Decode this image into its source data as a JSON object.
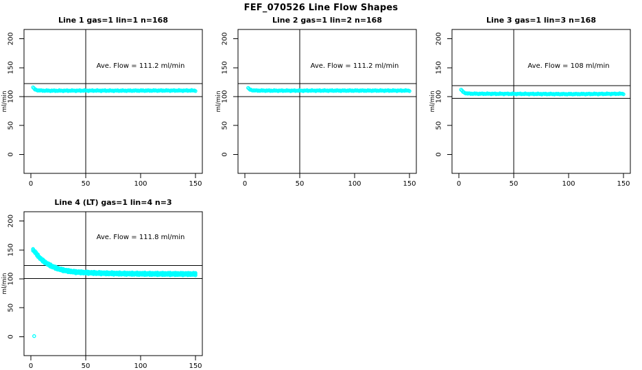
{
  "figure": {
    "title": "FEF_070526  Line Flow Shapes"
  },
  "axes": {
    "ylabel": "ml/min",
    "x_tick_labels": [
      "0",
      "50",
      "100",
      "150"
    ],
    "y_tick_labels": [
      "200",
      "150",
      "100",
      "50",
      "0"
    ]
  },
  "chart_data": [
    {
      "type": "scatter",
      "title": "Line 1 gas=1 lin=1 n=168",
      "n": 168,
      "ave_flow_ml_min": 111.2,
      "ave_label": "Ave. Flow =  111.2  ml/min",
      "marker": "open-circle",
      "marker_color": "#00FFFF",
      "xlim": [
        0,
        150
      ],
      "ylim": [
        0,
        200
      ],
      "x_ticks": [
        0,
        50,
        100,
        150
      ],
      "y_ticks": [
        0,
        50,
        100,
        150,
        200
      ],
      "ylabel": "ml/min",
      "vline_x": 50,
      "ref_lines_y": [
        122.3,
        100.1
      ],
      "runs": 1,
      "x_range": [
        2,
        150
      ],
      "series_shape": [
        [
          2,
          116
        ],
        [
          3,
          113.5
        ],
        [
          4,
          112
        ],
        [
          6,
          111
        ],
        [
          10,
          110.4
        ],
        [
          20,
          110.2
        ],
        [
          50,
          110.4
        ],
        [
          80,
          110.3
        ],
        [
          120,
          110.5
        ],
        [
          150,
          110.5
        ]
      ],
      "outliers": []
    },
    {
      "type": "scatter",
      "title": "Line 2 gas=1 lin=2 n=168",
      "n": 168,
      "ave_flow_ml_min": 111.2,
      "ave_label": "Ave. Flow =  111.2  ml/min",
      "marker": "open-circle",
      "marker_color": "#00FFFF",
      "xlim": [
        0,
        150
      ],
      "ylim": [
        0,
        200
      ],
      "x_ticks": [
        0,
        50,
        100,
        150
      ],
      "y_ticks": [
        0,
        50,
        100,
        150,
        200
      ],
      "ylabel": "ml/min",
      "vline_x": 50,
      "ref_lines_y": [
        122.3,
        100.1
      ],
      "runs": 1,
      "x_range": [
        3,
        150
      ],
      "series_shape": [
        [
          3,
          115
        ],
        [
          4,
          112.5
        ],
        [
          6,
          111.2
        ],
        [
          10,
          110.5
        ],
        [
          30,
          110.3
        ],
        [
          80,
          110.4
        ],
        [
          150,
          110.4
        ]
      ],
      "outliers": []
    },
    {
      "type": "scatter",
      "title": "Line 3 gas=1 lin=3 n=168",
      "n": 168,
      "ave_flow_ml_min": 108,
      "ave_label": "Ave. Flow =  108  ml/min",
      "marker": "open-circle",
      "marker_color": "#00FFFF",
      "xlim": [
        0,
        150
      ],
      "ylim": [
        0,
        200
      ],
      "x_ticks": [
        0,
        50,
        100,
        150
      ],
      "y_ticks": [
        0,
        50,
        100,
        150,
        200
      ],
      "ylabel": "ml/min",
      "vline_x": 50,
      "ref_lines_y": [
        118.8,
        97.2
      ],
      "runs": 1,
      "x_range": [
        2,
        150
      ],
      "series_shape": [
        [
          2,
          112
        ],
        [
          3,
          109.5
        ],
        [
          5,
          106.5
        ],
        [
          8,
          105.3
        ],
        [
          15,
          105
        ],
        [
          50,
          104.8
        ],
        [
          100,
          104.4
        ],
        [
          140,
          104.8
        ],
        [
          150,
          105
        ]
      ],
      "outliers": []
    },
    {
      "type": "scatter",
      "title": "Line 4 (LT) gas=1 lin=4 n=3",
      "n": 3,
      "ave_flow_ml_min": 111.8,
      "ave_label": "Ave. Flow =  111.8  ml/min",
      "marker": "open-circle",
      "marker_color": "#00FFFF",
      "xlim": [
        0,
        150
      ],
      "ylim": [
        0,
        200
      ],
      "x_ticks": [
        0,
        50,
        100,
        150
      ],
      "y_ticks": [
        0,
        50,
        100,
        150,
        200
      ],
      "ylabel": "ml/min",
      "vline_x": 50,
      "ref_lines_y": [
        123.0,
        100.6
      ],
      "runs": 3,
      "x_range": [
        2,
        150
      ],
      "series_shape": [
        [
          2,
          150
        ],
        [
          4,
          146
        ],
        [
          6,
          141
        ],
        [
          8,
          136.5
        ],
        [
          10,
          133
        ],
        [
          13,
          128.5
        ],
        [
          16,
          125
        ],
        [
          20,
          121
        ],
        [
          24,
          118
        ],
        [
          28,
          115.8
        ],
        [
          33,
          113.8
        ],
        [
          40,
          112
        ],
        [
          50,
          110.8
        ],
        [
          60,
          110
        ],
        [
          80,
          109.2
        ],
        [
          100,
          108.8
        ],
        [
          120,
          108.6
        ],
        [
          150,
          108.4
        ]
      ],
      "outliers": [
        [
          3,
          1
        ]
      ]
    }
  ]
}
